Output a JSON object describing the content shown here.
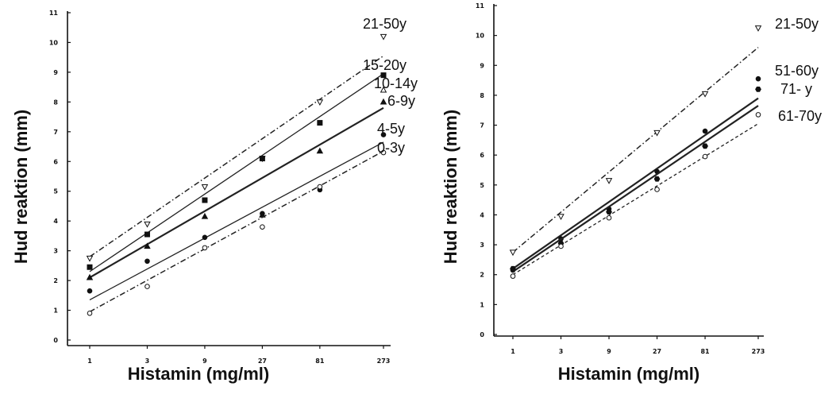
{
  "chart_data": [
    {
      "type": "scatter",
      "title": "",
      "xlabel": "Histamin (mg/ml)",
      "ylabel": "Hud reaktion (mm)",
      "x_scale": "log",
      "x_ticks": [
        "1",
        "3",
        "9",
        "27",
        "81",
        "273"
      ],
      "y_ticks": [
        "0",
        "1",
        "2",
        "3",
        "4",
        "5",
        "6",
        "7",
        "8",
        "9",
        "10",
        "11"
      ],
      "ylim": [
        0,
        11
      ],
      "grid": false,
      "series": [
        {
          "name": "21-50y",
          "marker": "triangle-down-open",
          "line": "dash-dot",
          "x": [
            1,
            3,
            9,
            27,
            81,
            273
          ],
          "y": [
            2.75,
            3.9,
            5.15,
            6.1,
            8.0,
            10.2
          ],
          "fit": [
            2.8,
            9.55
          ]
        },
        {
          "name": "15-20y",
          "marker": "square-filled",
          "line": "thin-solid",
          "x": [
            1,
            3,
            9,
            27,
            81,
            273
          ],
          "y": [
            2.45,
            3.55,
            4.7,
            6.1,
            7.3,
            8.9
          ],
          "fit": [
            2.3,
            8.95
          ]
        },
        {
          "name": "10-14y",
          "marker": "triangle-up-open",
          "line": "none",
          "x": [
            273
          ],
          "y": [
            8.4
          ],
          "fit": []
        },
        {
          "name": "6-9y",
          "marker": "triangle-up-filled",
          "line": "solid",
          "x": [
            1,
            3,
            9,
            27,
            81,
            273
          ],
          "y": [
            2.1,
            3.15,
            4.15,
            4.2,
            6.35,
            8.0
          ],
          "fit": [
            2.1,
            7.8
          ]
        },
        {
          "name": "4-5y",
          "marker": "circle-filled",
          "line": "thin-solid",
          "x": [
            1,
            3,
            9,
            27,
            81,
            273
          ],
          "y": [
            1.65,
            2.65,
            3.45,
            4.25,
            5.05,
            6.9
          ],
          "fit": [
            1.35,
            6.65
          ]
        },
        {
          "name": "0-3y",
          "marker": "circle-open",
          "line": "dash-dot",
          "x": [
            1,
            3,
            9,
            27,
            81,
            273
          ],
          "y": [
            0.9,
            1.8,
            3.1,
            3.8,
            5.15,
            6.3
          ],
          "fit": [
            0.95,
            6.35
          ]
        }
      ]
    },
    {
      "type": "scatter",
      "title": "",
      "xlabel": "Histamin (mg/ml)",
      "ylabel": "Hud reaktion (mm)",
      "x_scale": "log",
      "x_ticks": [
        "1",
        "3",
        "9",
        "27",
        "81",
        "273"
      ],
      "y_ticks": [
        "0",
        "1",
        "2",
        "3",
        "4",
        "5",
        "6",
        "7",
        "8",
        "9",
        "10",
        "11"
      ],
      "ylim": [
        0,
        11
      ],
      "grid": false,
      "series": [
        {
          "name": "21-50y",
          "marker": "triangle-down-open",
          "line": "dash-dot",
          "x": [
            1,
            3,
            9,
            27,
            81,
            273
          ],
          "y": [
            2.75,
            3.95,
            5.15,
            6.75,
            8.05,
            10.25
          ],
          "fit": [
            2.75,
            9.6
          ]
        },
        {
          "name": "51-60y",
          "marker": "circle-filled",
          "line": "solid",
          "x": [
            1,
            3,
            9,
            27,
            81,
            273
          ],
          "y": [
            2.15,
            3.2,
            4.2,
            5.45,
            6.8,
            8.55
          ],
          "fit": [
            2.2,
            7.9
          ]
        },
        {
          "name": "71- y",
          "marker": "hexagon-filled",
          "line": "solid",
          "x": [
            1,
            3,
            9,
            27,
            81,
            273
          ],
          "y": [
            2.2,
            3.05,
            4.1,
            5.2,
            6.3,
            8.2
          ],
          "fit": [
            2.1,
            7.65
          ]
        },
        {
          "name": "61-70y",
          "marker": "circle-open",
          "line": "dashed",
          "x": [
            1,
            3,
            9,
            27,
            81,
            273
          ],
          "y": [
            1.95,
            2.95,
            3.9,
            4.85,
            5.95,
            7.35
          ],
          "fit": [
            2.0,
            7.05
          ]
        }
      ]
    }
  ]
}
